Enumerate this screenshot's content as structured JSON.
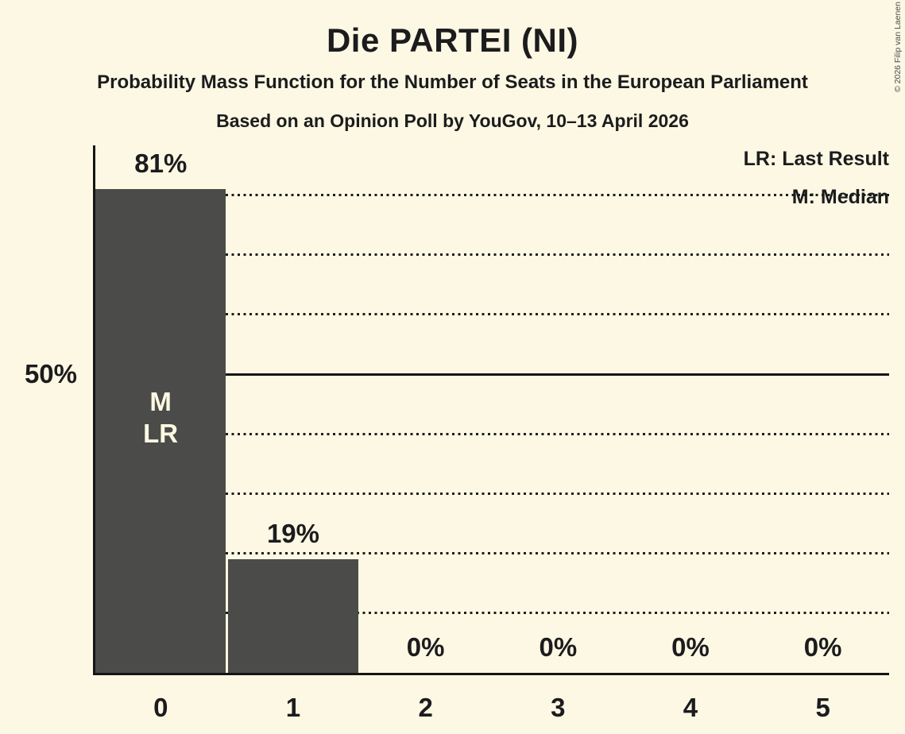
{
  "header": {
    "title": "Die PARTEI (NI)",
    "subtitle": "Probability Mass Function for the Number of Seats in the European Parliament",
    "poll_info": "Based on an Opinion Poll by YouGov, 10–13 April 2026"
  },
  "legend": {
    "last_result": "LR: Last Result",
    "median": "M: Median"
  },
  "y_axis": {
    "label_50": "50%"
  },
  "copyright": "© 2026 Filip van Laenen",
  "colors": {
    "background": "#fcf8e3",
    "bar": "#4b4b49",
    "text": "#1c1c1e",
    "bar_inner_label": "#fcf8e3",
    "gridline": "#1e1e1e"
  },
  "chart_data": {
    "type": "bar",
    "title": "Die PARTEI (NI)",
    "categories": [
      "0",
      "1",
      "2",
      "3",
      "4",
      "5"
    ],
    "values": [
      81,
      19,
      0,
      0,
      0,
      0
    ],
    "value_labels": [
      "81%",
      "19%",
      "0%",
      "0%",
      "0%",
      "0%"
    ],
    "bar_annotations": [
      [
        "M",
        "LR"
      ],
      [],
      [],
      [],
      [],
      []
    ],
    "ylim": [
      0,
      88
    ],
    "y_gridlines_dotted_pct": [
      10,
      20,
      30,
      40,
      60,
      70,
      80
    ],
    "y_gridline_solid_pct": 50,
    "y_labeled_pct": 50,
    "grid": "horizontal-dotted",
    "legend_position": "top-right",
    "annotation_legend": {
      "LR": "Last Result",
      "M": "Median"
    }
  }
}
